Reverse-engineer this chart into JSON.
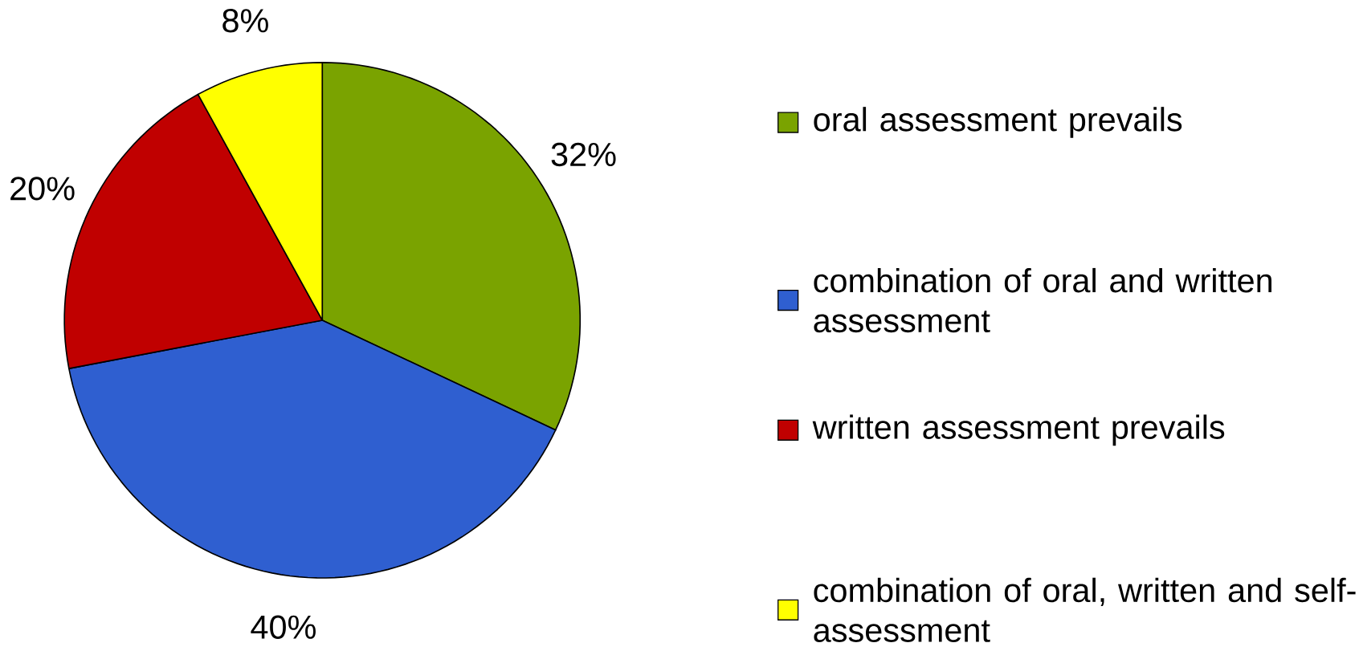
{
  "chart_data": {
    "type": "pie",
    "categories": [
      "oral assessment prevails",
      "combination of oral and written assessment",
      "written assessment prevails",
      "combination of oral, written and self-assessment"
    ],
    "values": [
      32,
      40,
      20,
      8
    ],
    "colors": [
      "#7aa300",
      "#2f5fd0",
      "#c00000",
      "#ffff00"
    ],
    "value_labels": [
      "32%",
      "40%",
      "20%",
      "8%"
    ],
    "legend": "right"
  }
}
